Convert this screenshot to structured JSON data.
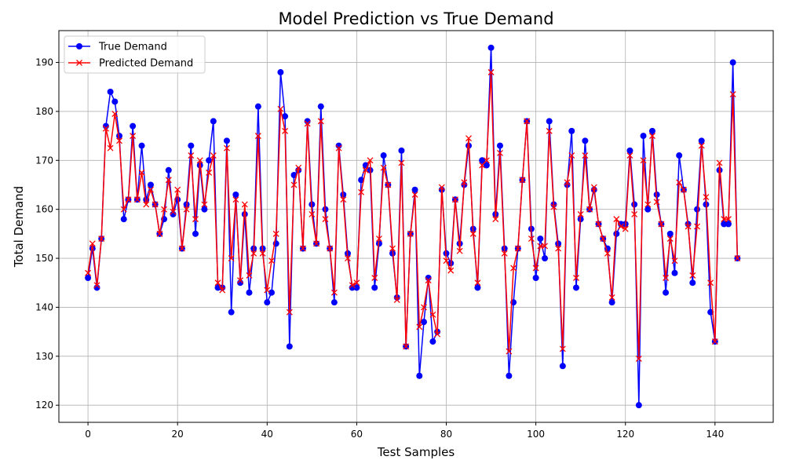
{
  "chart_data": {
    "type": "line",
    "title": "Model Prediction vs True Demand",
    "xlabel": "Test Samples",
    "ylabel": "Total Demand",
    "xlim": [
      -6.5,
      153
    ],
    "ylim": [
      116.5,
      196.5
    ],
    "xticks": [
      0,
      20,
      40,
      60,
      80,
      100,
      120,
      140
    ],
    "yticks": [
      120,
      130,
      140,
      150,
      160,
      170,
      180,
      190
    ],
    "grid": true,
    "legend_position": "top-left",
    "series": [
      {
        "name": "True Demand",
        "color": "#0000ff",
        "marker": "circle",
        "values": [
          146,
          152,
          144,
          154,
          177,
          184,
          182,
          175,
          158,
          162,
          177,
          162,
          173,
          162,
          165,
          161,
          155,
          158,
          168,
          159,
          162,
          152,
          161,
          173,
          155,
          169,
          160,
          170,
          178,
          144,
          144,
          174,
          139,
          163,
          145,
          159,
          143,
          152,
          181,
          152,
          141,
          143,
          153,
          188,
          179,
          132,
          167,
          168,
          152,
          178,
          161,
          153,
          181,
          160,
          152,
          141,
          173,
          163,
          151,
          144,
          144,
          166,
          169,
          168,
          144,
          153,
          171,
          165,
          151,
          142,
          172,
          132,
          155,
          164,
          126,
          137,
          146,
          133,
          135,
          164,
          151,
          149,
          162,
          153,
          165,
          173,
          156,
          144,
          170,
          169,
          193,
          159,
          173,
          152,
          126,
          141,
          152,
          166,
          178,
          156,
          146,
          154,
          150,
          178,
          161,
          153,
          128,
          165,
          176,
          144,
          158,
          174,
          160,
          164,
          157,
          154,
          152,
          141,
          155,
          157,
          157,
          172,
          161,
          120,
          175,
          160,
          176,
          163,
          157,
          143,
          155,
          147,
          171,
          164,
          157,
          145,
          160,
          174,
          161,
          139,
          133,
          168,
          157,
          157,
          190,
          150
        ]
      },
      {
        "name": "Predicted Demand",
        "color": "#ff0000",
        "marker": "x",
        "values": [
          147,
          153,
          144.5,
          154,
          176.5,
          172.5,
          179.5,
          174,
          160,
          162,
          175,
          162,
          167.5,
          161,
          164,
          161,
          155,
          160,
          166,
          159.5,
          164,
          152,
          160,
          171,
          158,
          170,
          161,
          167.5,
          171,
          145,
          143.5,
          172.5,
          150,
          162,
          145.5,
          161,
          146.5,
          151,
          175,
          151,
          143.5,
          149.5,
          155,
          180.5,
          176,
          139,
          165,
          168.5,
          152,
          177.5,
          159,
          153,
          178,
          158,
          152,
          143,
          172.5,
          162,
          150,
          144.5,
          145,
          163.5,
          168,
          170,
          146,
          154,
          168.5,
          165,
          152,
          141.5,
          169.5,
          132,
          155,
          163,
          136,
          140,
          145.5,
          138.5,
          134.5,
          164.5,
          149.5,
          147.5,
          162,
          151.5,
          165.5,
          174.5,
          155,
          145,
          169,
          170,
          188,
          158,
          171.5,
          151,
          131,
          148,
          152,
          166,
          178,
          154,
          148,
          152.5,
          152.5,
          176,
          160.5,
          152,
          131.5,
          165.5,
          171,
          146,
          159,
          171,
          160,
          164.5,
          157,
          154,
          151,
          142,
          158,
          156.5,
          156,
          171,
          159,
          129.5,
          170,
          161,
          175,
          161.5,
          157,
          146,
          154,
          149.5,
          165.5,
          164,
          156.5,
          146.5,
          156.5,
          173,
          162.5,
          145,
          133,
          169.5,
          158,
          158,
          183.5,
          150
        ]
      }
    ]
  }
}
